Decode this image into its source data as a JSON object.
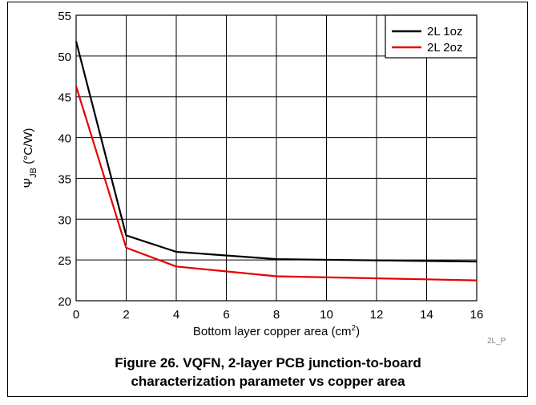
{
  "chart_data": {
    "type": "line",
    "xlabel": "Bottom layer copper area (cm",
    "xlabel_sup": "2",
    "xlabel_end": ")",
    "ylabel_psi": "Ψ",
    "ylabel_sub": "JB",
    "ylabel_unit": " (°C/W)",
    "xlim": [
      0,
      16
    ],
    "ylim": [
      20,
      55
    ],
    "x_ticks": [
      "0",
      "2",
      "4",
      "6",
      "8",
      "10",
      "12",
      "14",
      "16"
    ],
    "y_ticks": [
      "20",
      "25",
      "30",
      "35",
      "40",
      "45",
      "50",
      "55"
    ],
    "grid": true,
    "legend_position": "top-right",
    "series": [
      {
        "name": "2L 1oz",
        "color": "#000000",
        "x": [
          0,
          2,
          4,
          8,
          16
        ],
        "y": [
          51.8,
          28.0,
          26.0,
          25.1,
          24.8
        ]
      },
      {
        "name": "2L 2oz",
        "color": "#e60000",
        "x": [
          0,
          2,
          4,
          8,
          16
        ],
        "y": [
          46.3,
          26.5,
          24.2,
          23.0,
          22.5
        ]
      }
    ]
  },
  "reference_code": "2L_P",
  "caption": {
    "line1": "Figure 26. VQFN, 2-layer PCB junction-to-board",
    "line2": "characterization parameter vs copper area"
  }
}
